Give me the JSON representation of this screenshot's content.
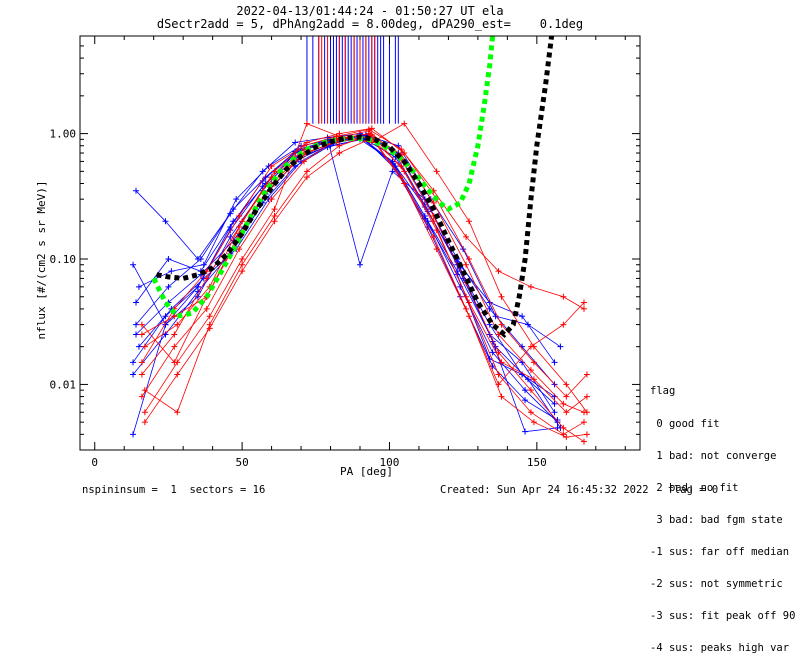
{
  "chart_data": {
    "type": "line",
    "title": "2022-04-13/01:44:24 - 01:50:27 UT ela",
    "subtitle": "dSectr2add = 5, dPhAng2add = 8.00deg, dPA290_est=    0.1deg",
    "xlabel": "PA [deg]",
    "ylabel": "nflux [#/(cm2 s sr MeV)]",
    "xlim": [
      -5,
      185
    ],
    "ylim": [
      0.003,
      6
    ],
    "yscale": "log",
    "xticks": [
      0,
      50,
      100,
      150
    ],
    "xtick_labels": [
      "0",
      "50",
      "100",
      "150"
    ],
    "yticks": [
      0.01,
      0.1,
      1.0
    ],
    "ytick_labels": [
      "0.01",
      "0.10",
      "1.00"
    ],
    "colors": {
      "red": "#ff0000",
      "blue": "#0000ff",
      "green": "#00ff00",
      "black": "#000000"
    },
    "series": [
      {
        "color": "blue",
        "x": [
          14,
          24,
          35,
          46,
          57,
          68,
          79,
          90,
          101,
          112,
          123,
          134,
          145,
          156
        ],
        "y": [
          0.35,
          0.2,
          0.1,
          0.23,
          0.5,
          0.85,
          0.93,
          1.0,
          0.75,
          0.27,
          0.09,
          0.03,
          0.012,
          0.008
        ]
      },
      {
        "color": "blue",
        "x": [
          13,
          24,
          35,
          46,
          57,
          68,
          79,
          90,
          101,
          112,
          123,
          134,
          145,
          156
        ],
        "y": [
          0.09,
          0.03,
          0.06,
          0.17,
          0.38,
          0.7,
          0.85,
          0.95,
          0.6,
          0.22,
          0.08,
          0.025,
          0.015,
          0.006
        ]
      },
      {
        "color": "blue",
        "x": [
          14,
          25,
          36,
          47,
          58,
          69,
          80,
          91,
          102,
          113,
          124,
          135,
          146,
          157
        ],
        "y": [
          0.045,
          0.1,
          0.08,
          0.2,
          0.4,
          0.65,
          0.8,
          0.9,
          0.55,
          0.2,
          0.06,
          0.018,
          0.009,
          0.005
        ]
      },
      {
        "color": "blue",
        "x": [
          15,
          26,
          37,
          48,
          59,
          70,
          81,
          92,
          103,
          114,
          125,
          136,
          147,
          158
        ],
        "y": [
          0.02,
          0.04,
          0.07,
          0.12,
          0.3,
          0.6,
          0.85,
          0.98,
          0.7,
          0.25,
          0.07,
          0.02,
          0.011,
          0.0045
        ]
      },
      {
        "color": "blue",
        "x": [
          13,
          24,
          35,
          46,
          57,
          68,
          79,
          90,
          101,
          112,
          123,
          134,
          145,
          156
        ],
        "y": [
          0.004,
          0.03,
          0.05,
          0.15,
          0.35,
          0.7,
          0.9,
          0.09,
          0.5,
          0.3,
          0.1,
          0.04,
          0.02,
          0.01
        ]
      },
      {
        "color": "blue",
        "x": [
          14,
          25,
          36,
          47,
          58,
          69,
          80,
          91,
          102,
          113,
          124,
          135,
          146,
          157
        ],
        "y": [
          0.03,
          0.06,
          0.1,
          0.25,
          0.45,
          0.75,
          0.88,
          0.92,
          0.65,
          0.24,
          0.085,
          0.022,
          0.0042,
          0.0045
        ]
      },
      {
        "color": "blue",
        "x": [
          13,
          24,
          35,
          46,
          57,
          68,
          79,
          90,
          101,
          112,
          123,
          134,
          145,
          156
        ],
        "y": [
          0.015,
          0.035,
          0.06,
          0.18,
          0.42,
          0.72,
          0.86,
          0.96,
          0.58,
          0.21,
          0.075,
          0.016,
          0.012,
          0.007
        ]
      },
      {
        "color": "blue",
        "x": [
          15,
          26,
          37,
          48,
          59,
          70,
          81,
          92,
          103,
          114,
          125,
          136,
          147,
          158
        ],
        "y": [
          0.06,
          0.08,
          0.09,
          0.3,
          0.55,
          0.8,
          0.9,
          0.97,
          0.8,
          0.3,
          0.12,
          0.035,
          0.03,
          0.02
        ]
      },
      {
        "color": "blue",
        "x": [
          14,
          25,
          36,
          47,
          58,
          69,
          80,
          91,
          102,
          113,
          124,
          135,
          146,
          157
        ],
        "y": [
          0.025,
          0.045,
          0.075,
          0.14,
          0.33,
          0.62,
          0.82,
          0.94,
          0.52,
          0.18,
          0.05,
          0.014,
          0.0075,
          0.0052
        ]
      },
      {
        "color": "blue",
        "x": [
          13,
          24,
          35,
          46,
          57,
          68,
          79,
          90,
          101,
          112,
          123,
          134,
          145,
          156
        ],
        "y": [
          0.012,
          0.025,
          0.055,
          0.11,
          0.28,
          0.55,
          0.78,
          0.9,
          0.6,
          0.26,
          0.095,
          0.045,
          0.035,
          0.015
        ]
      },
      {
        "color": "red",
        "x": [
          16,
          27,
          38,
          49,
          60,
          71,
          82,
          93,
          104,
          115,
          126,
          137,
          148,
          159,
          166
        ],
        "y": [
          0.03,
          0.015,
          0.05,
          0.15,
          0.4,
          0.7,
          0.85,
          0.95,
          0.55,
          0.2,
          0.05,
          0.012,
          0.006,
          0.004,
          0.005
        ]
      },
      {
        "color": "red",
        "x": [
          17,
          28,
          39,
          50,
          61,
          72,
          83,
          94,
          105,
          116,
          127,
          138,
          149,
          160,
          167
        ],
        "y": [
          0.02,
          0.03,
          0.06,
          0.2,
          0.5,
          0.85,
          1.0,
          1.1,
          0.7,
          0.3,
          0.1,
          0.03,
          0.015,
          0.008,
          0.012
        ]
      },
      {
        "color": "red",
        "x": [
          16,
          27,
          38,
          49,
          60,
          71,
          82,
          93,
          104,
          115,
          126,
          137,
          148,
          159,
          166
        ],
        "y": [
          0.008,
          0.02,
          0.04,
          0.12,
          0.3,
          0.6,
          0.9,
          1.0,
          0.45,
          0.15,
          0.04,
          0.01,
          0.02,
          0.03,
          0.045
        ]
      },
      {
        "color": "red",
        "x": [
          17,
          28,
          39,
          50,
          61,
          72,
          83,
          94,
          105,
          116,
          127,
          138,
          149,
          160,
          167
        ],
        "y": [
          0.006,
          0.015,
          0.035,
          0.1,
          0.25,
          1.2,
          0.95,
          0.85,
          1.2,
          0.5,
          0.2,
          0.05,
          0.02,
          0.01,
          0.006
        ]
      },
      {
        "color": "red",
        "x": [
          16,
          27,
          38,
          49,
          60,
          71,
          82,
          93,
          104,
          115,
          126,
          137,
          148,
          159,
          166
        ],
        "y": [
          0.012,
          0.025,
          0.07,
          0.18,
          0.45,
          0.75,
          0.92,
          1.05,
          0.62,
          0.22,
          0.065,
          0.018,
          0.009,
          0.0045,
          0.0035
        ]
      },
      {
        "color": "red",
        "x": [
          17,
          28,
          39,
          50,
          61,
          72,
          83,
          94,
          105,
          116,
          127,
          138,
          149,
          160,
          167
        ],
        "y": [
          0.009,
          0.006,
          0.03,
          0.09,
          0.22,
          0.5,
          0.8,
          0.98,
          0.5,
          0.17,
          0.045,
          0.015,
          0.011,
          0.006,
          0.008
        ]
      },
      {
        "color": "red",
        "x": [
          16,
          27,
          38,
          49,
          60,
          71,
          82,
          93,
          104,
          115,
          126,
          137,
          148,
          159,
          166
        ],
        "y": [
          0.015,
          0.04,
          0.08,
          0.22,
          0.55,
          0.8,
          0.95,
          1.08,
          0.75,
          0.35,
          0.15,
          0.08,
          0.06,
          0.05,
          0.04
        ]
      },
      {
        "color": "red",
        "x": [
          17,
          28,
          39,
          50,
          61,
          72,
          83,
          94,
          105,
          116,
          127,
          138,
          149,
          160,
          167
        ],
        "y": [
          0.005,
          0.012,
          0.028,
          0.08,
          0.2,
          0.45,
          0.7,
          0.92,
          0.4,
          0.12,
          0.035,
          0.008,
          0.005,
          0.0038,
          0.004
        ]
      },
      {
        "color": "red",
        "x": [
          16,
          27,
          38,
          49,
          60,
          71,
          82,
          93,
          104,
          115,
          126,
          137,
          148,
          159,
          166
        ],
        "y": [
          0.025,
          0.035,
          0.05,
          0.16,
          0.38,
          0.68,
          0.88,
          1.0,
          0.68,
          0.28,
          0.09,
          0.025,
          0.013,
          0.007,
          0.006
        ]
      },
      {
        "color": "green",
        "style": "dotted",
        "x": [
          20,
          24,
          28,
          33,
          38,
          43,
          48,
          53,
          58,
          63,
          68,
          73,
          78,
          83,
          88,
          93,
          98,
          103,
          108,
          113,
          117,
          120,
          124,
          127,
          130,
          132,
          134,
          135
        ],
        "y": [
          0.07,
          0.045,
          0.035,
          0.037,
          0.05,
          0.08,
          0.13,
          0.22,
          0.35,
          0.5,
          0.65,
          0.77,
          0.85,
          0.9,
          0.92,
          0.9,
          0.8,
          0.66,
          0.5,
          0.36,
          0.28,
          0.25,
          0.28,
          0.4,
          0.8,
          1.6,
          3.5,
          6.0
        ]
      },
      {
        "color": "black",
        "style": "dotted",
        "x": [
          21,
          25,
          30,
          35,
          40,
          45,
          50,
          55,
          60,
          65,
          70,
          75,
          80,
          85,
          90,
          95,
          100,
          105,
          110,
          115,
          120,
          125,
          130,
          135,
          139,
          142,
          144,
          146,
          148,
          150,
          153,
          155
        ],
        "y": [
          0.075,
          0.072,
          0.07,
          0.075,
          0.085,
          0.11,
          0.16,
          0.25,
          0.37,
          0.52,
          0.66,
          0.78,
          0.86,
          0.92,
          0.94,
          0.9,
          0.78,
          0.6,
          0.4,
          0.25,
          0.14,
          0.08,
          0.045,
          0.03,
          0.025,
          0.03,
          0.05,
          0.1,
          0.3,
          0.8,
          2.5,
          6.0
        ]
      }
    ],
    "vlines_blue": [
      72,
      74,
      76,
      78,
      80,
      81,
      82,
      83,
      84,
      85,
      86,
      87,
      88,
      89,
      90,
      91,
      92,
      93,
      94,
      95,
      96,
      97,
      98,
      100,
      102,
      103
    ],
    "vlines_red": [
      76,
      77,
      79,
      83,
      85,
      88,
      90,
      92,
      94,
      95
    ],
    "legend": {
      "position": "right",
      "heading": "flag",
      "items": [
        " 0 good fit",
        " 1 bad: not converge",
        " 2 bad: no fit",
        " 3 bad: bad fgm state",
        "-1 sus: far off median",
        "-2 sus: not symmetric",
        "-3 sus: fit peak off 90",
        "-4 sus: peaks high var"
      ]
    }
  },
  "footer": {
    "left": "nspininsum =  1  sectors = 16",
    "right": "Created: Sun Apr 24 16:45:32 2022   flag = 0"
  }
}
